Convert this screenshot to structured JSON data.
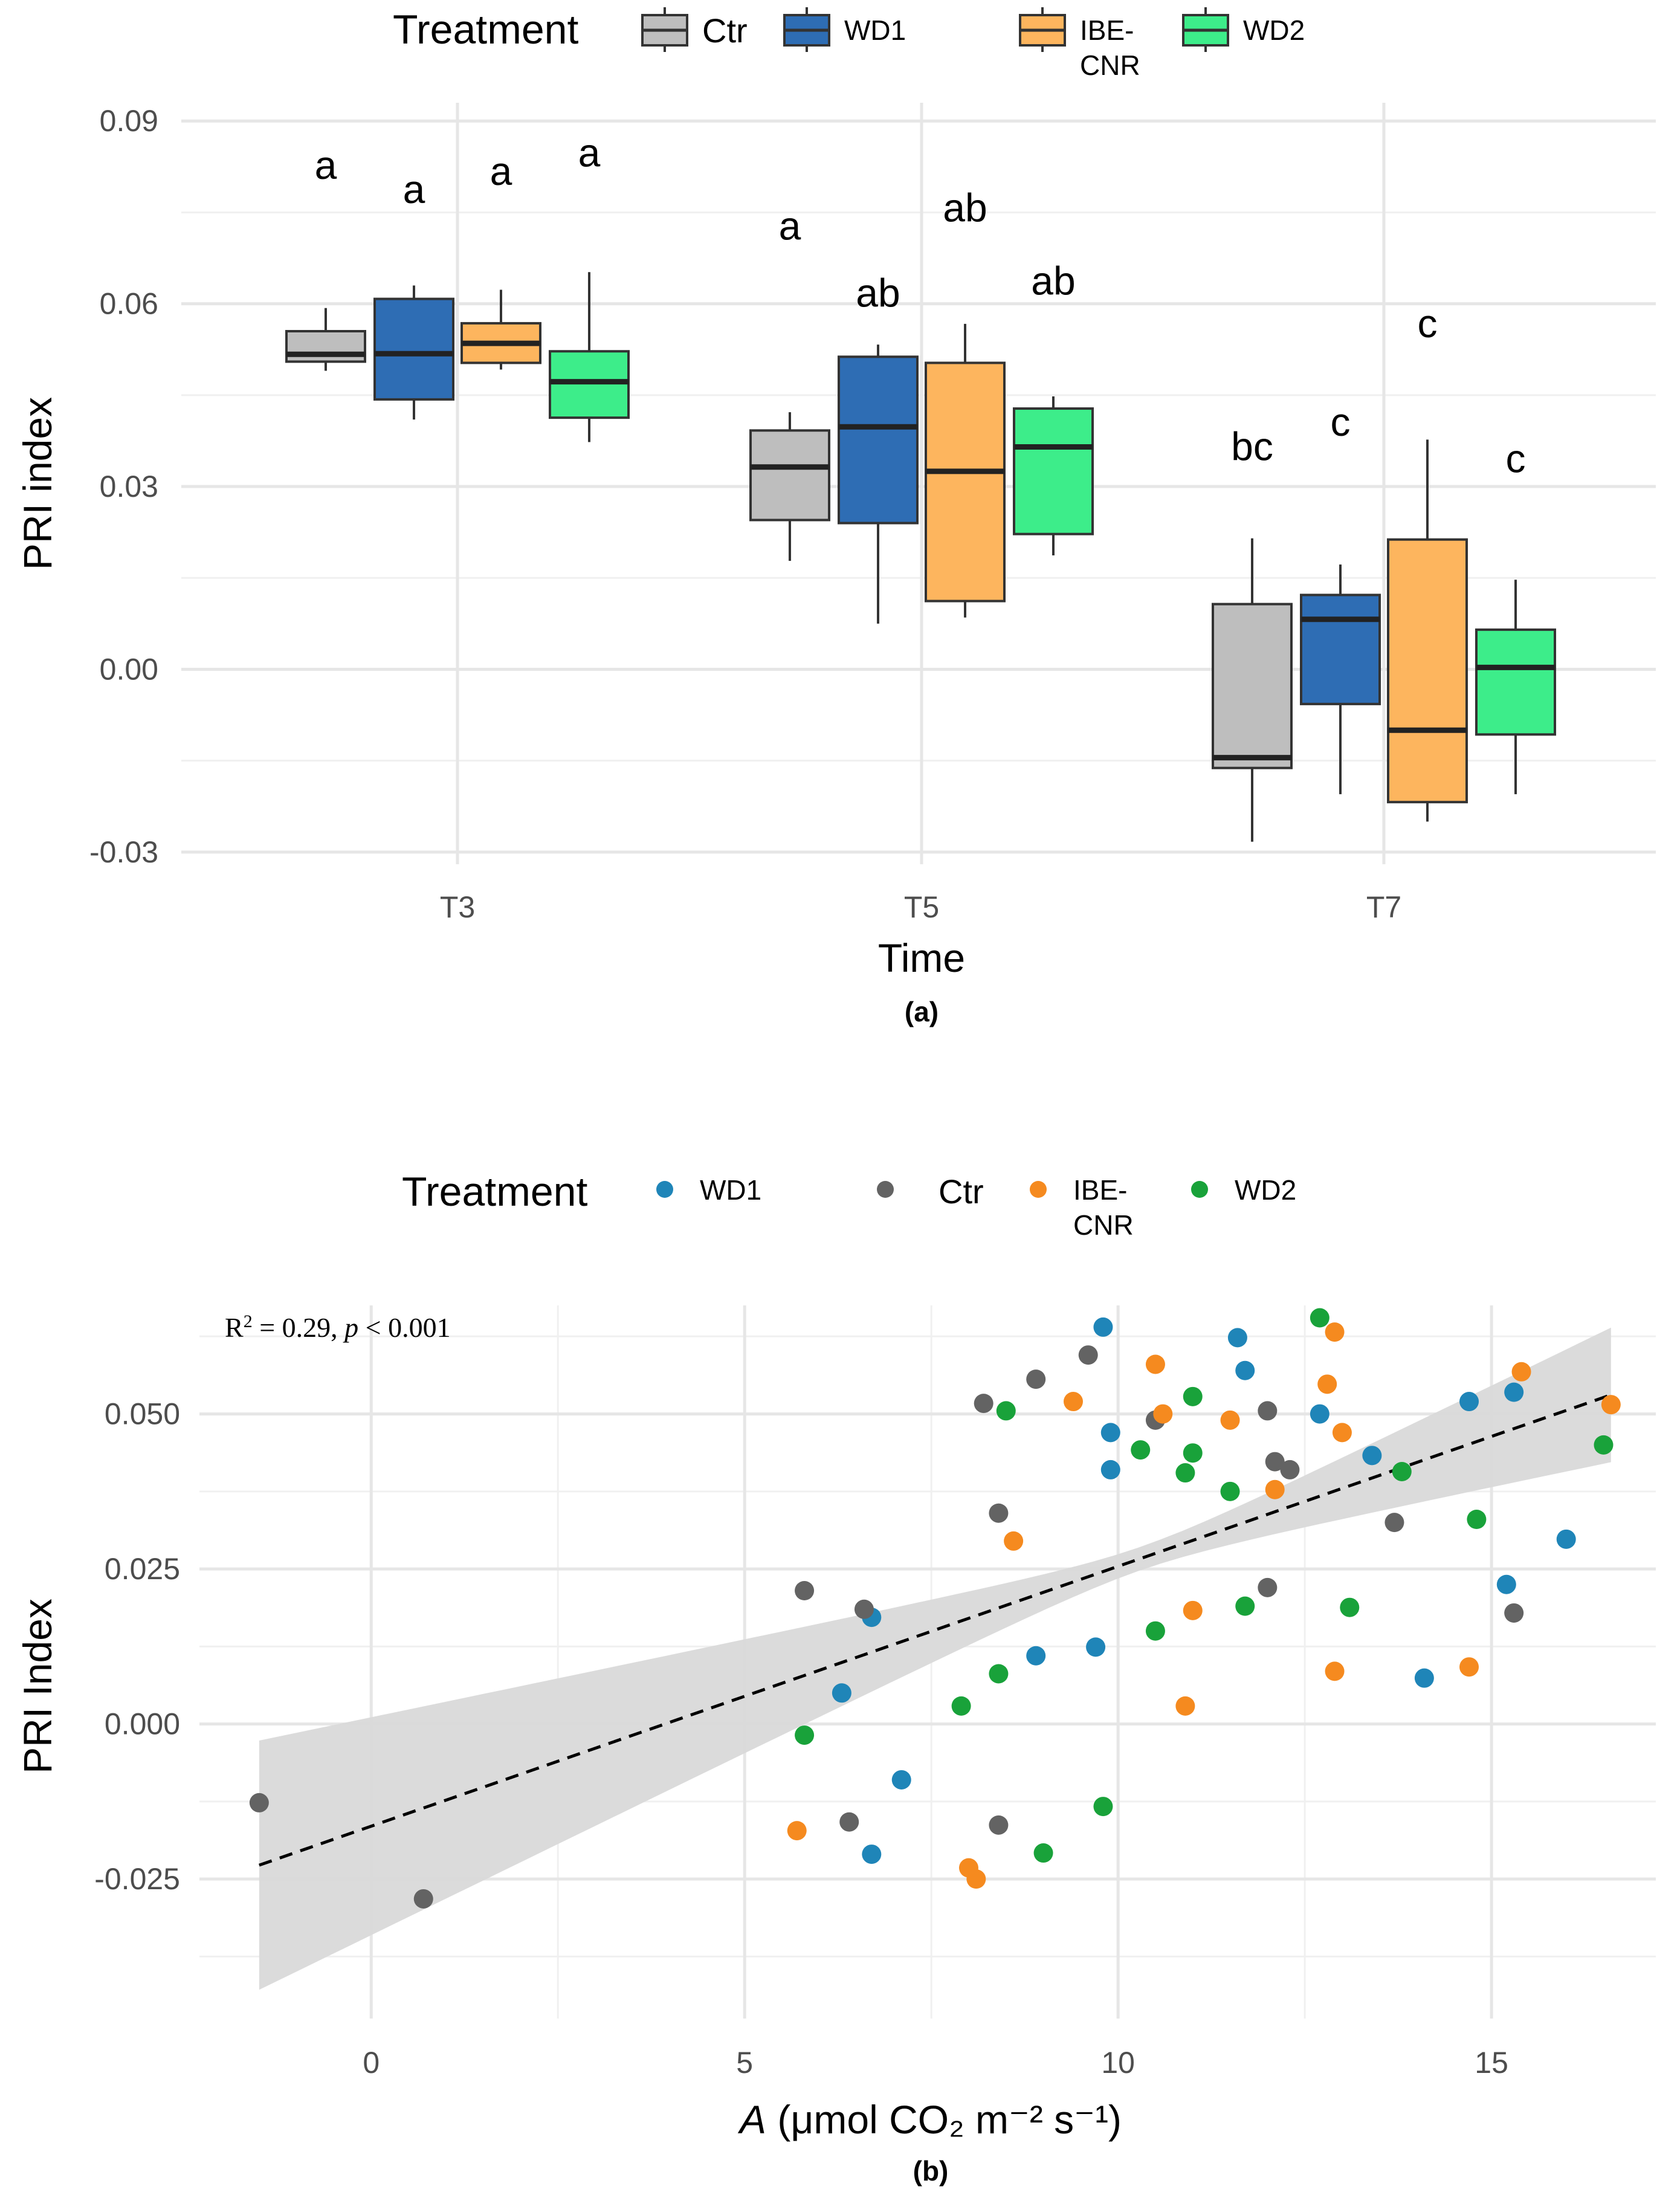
{
  "chart_data": [
    {
      "type": "box",
      "subplot_label": "(a)",
      "xlabel": "Time",
      "ylabel": "PRI index",
      "ylim": [
        -0.032,
        0.093
      ],
      "yticks": [
        -0.03,
        0.0,
        0.03,
        0.06,
        0.09
      ],
      "ytick_labels": [
        "-0.03",
        "0.00",
        "0.03",
        "0.06",
        "0.09"
      ],
      "categories": [
        "T3",
        "T5",
        "T7"
      ],
      "legend": {
        "title": "Treatment",
        "position": "top",
        "entries": [
          {
            "label": "Ctr",
            "color": "#bebebe"
          },
          {
            "label": "WD1",
            "color": "#2e6db4"
          },
          {
            "label": "IBE-\nCNR",
            "color": "#fdb55e"
          },
          {
            "label": "WD2",
            "color": "#3ded8a"
          }
        ]
      },
      "series": [
        {
          "name": "Ctr",
          "color": "#bebebe",
          "boxes": [
            {
              "category": "T3",
              "min": 0.049,
              "q1": 0.0505,
              "median": 0.0517,
              "q3": 0.0555,
              "max": 0.0593,
              "letter": "a",
              "letter_y": 0.0827
            },
            {
              "category": "T5",
              "min": 0.0178,
              "q1": 0.0245,
              "median": 0.0332,
              "q3": 0.0392,
              "max": 0.0422,
              "letter": "a",
              "letter_y": 0.0727
            },
            {
              "category": "T7",
              "min": -0.0283,
              "q1": -0.0162,
              "median": -0.0145,
              "q3": 0.0107,
              "max": 0.0215,
              "letter": "bc",
              "letter_y": 0.0365
            }
          ]
        },
        {
          "name": "WD1",
          "color": "#2e6db4",
          "boxes": [
            {
              "category": "T3",
              "min": 0.041,
              "q1": 0.0443,
              "median": 0.0518,
              "q3": 0.0608,
              "max": 0.063,
              "letter": "a",
              "letter_y": 0.0787
            },
            {
              "category": "T5",
              "min": 0.0075,
              "q1": 0.024,
              "median": 0.0398,
              "q3": 0.0513,
              "max": 0.0533,
              "letter": "ab",
              "letter_y": 0.0617
            },
            {
              "category": "T7",
              "min": -0.0205,
              "q1": -0.0057,
              "median": 0.0082,
              "q3": 0.0122,
              "max": 0.0172,
              "letter": "c",
              "letter_y": 0.0405
            }
          ]
        },
        {
          "name": "IBE-\nCNR",
          "color": "#fdb55e",
          "boxes": [
            {
              "category": "T3",
              "min": 0.0492,
              "q1": 0.0503,
              "median": 0.0535,
              "q3": 0.0568,
              "max": 0.0623,
              "letter": "a",
              "letter_y": 0.0817
            },
            {
              "category": "T5",
              "min": 0.0085,
              "q1": 0.0112,
              "median": 0.0325,
              "q3": 0.0503,
              "max": 0.0567,
              "letter": "ab",
              "letter_y": 0.0757
            },
            {
              "category": "T7",
              "min": -0.025,
              "q1": -0.0218,
              "median": -0.01,
              "q3": 0.0213,
              "max": 0.0377,
              "letter": "c",
              "letter_y": 0.0567
            }
          ]
        },
        {
          "name": "WD2",
          "color": "#3ded8a",
          "boxes": [
            {
              "category": "T3",
              "min": 0.0373,
              "q1": 0.0413,
              "median": 0.0472,
              "q3": 0.0522,
              "max": 0.0652,
              "letter": "a",
              "letter_y": 0.0847
            },
            {
              "category": "T5",
              "min": 0.0187,
              "q1": 0.0222,
              "median": 0.0365,
              "q3": 0.0428,
              "max": 0.0448,
              "letter": "ab",
              "letter_y": 0.0637
            },
            {
              "category": "T7",
              "min": -0.0205,
              "q1": -0.0107,
              "median": 0.0003,
              "q3": 0.0065,
              "max": 0.0147,
              "letter": "c",
              "letter_y": 0.0345
            }
          ]
        }
      ]
    },
    {
      "type": "scatter",
      "subplot_label": "(b)",
      "xlabel_italic": "A",
      "xlabel_rest": " (μmol CO₂ m⁻² s⁻¹)",
      "ylabel": "PRI Index",
      "xlim": [
        -2.3,
        17.2
      ],
      "ylim": [
        -0.0475,
        0.0675
      ],
      "xticks": [
        0,
        5,
        10,
        15
      ],
      "xtick_labels": [
        "0",
        "5",
        "10",
        "15"
      ],
      "yticks": [
        -0.025,
        0.0,
        0.025,
        0.05
      ],
      "ytick_labels": [
        "-0.025",
        "0.000",
        "0.025",
        "0.050"
      ],
      "annotation": {
        "lead": "R",
        "sup": "2",
        "mid": " = 0.29, ",
        "p": "p",
        "tail": " < 0.001"
      },
      "fit": {
        "slope": 0.00419,
        "intercept": -0.01648,
        "x_range": [
          -1.5,
          16.6
        ],
        "ci_lower": [
          -0.0427,
          0.0421
        ],
        "ci_upper": [
          -0.0025,
          0.0638
        ],
        "xbar": 10.3,
        "seline_color": "#000000",
        "band_color": "#d9d9d9"
      },
      "legend": {
        "title": "Treatment",
        "position": "top",
        "entries": [
          {
            "label": "WD1",
            "color": "#1f85b8"
          },
          {
            "label": "Ctr",
            "color": "#636363"
          },
          {
            "label": "IBE-\nCNR",
            "color": "#f58a1f"
          },
          {
            "label": "WD2",
            "color": "#19a23a"
          }
        ]
      },
      "series": [
        {
          "name": "WD1",
          "color": "#1f85b8",
          "points": [
            [
              9.8,
              0.064
            ],
            [
              11.6,
              0.0623
            ],
            [
              11.7,
              0.057
            ],
            [
              9.9,
              0.047
            ],
            [
              9.9,
              0.041
            ],
            [
              12.7,
              0.05
            ],
            [
              13.4,
              0.0433
            ],
            [
              14.7,
              0.052
            ],
            [
              15.3,
              0.0535
            ],
            [
              16.0,
              0.0298
            ],
            [
              15.2,
              0.0225
            ],
            [
              14.1,
              0.0074
            ],
            [
              9.7,
              0.0124
            ],
            [
              8.9,
              0.011
            ],
            [
              6.7,
              0.0172
            ],
            [
              6.3,
              0.005
            ],
            [
              7.1,
              -0.009
            ],
            [
              6.7,
              -0.021
            ]
          ]
        },
        {
          "name": "Ctr",
          "color": "#636363",
          "points": [
            [
              9.6,
              0.0595
            ],
            [
              8.9,
              0.0556
            ],
            [
              8.2,
              0.0517
            ],
            [
              10.5,
              0.049
            ],
            [
              12.0,
              0.0505
            ],
            [
              12.1,
              0.0423
            ],
            [
              12.3,
              0.041
            ],
            [
              13.7,
              0.0325
            ],
            [
              15.3,
              0.0179
            ],
            [
              8.4,
              0.034
            ],
            [
              12.0,
              0.022
            ],
            [
              5.8,
              0.0215
            ],
            [
              6.6,
              0.0185
            ],
            [
              6.4,
              -0.0158
            ],
            [
              8.4,
              -0.0163
            ],
            [
              -1.5,
              -0.0127
            ],
            [
              0.7,
              -0.0282
            ]
          ]
        },
        {
          "name": "IBE-\nCNR",
          "color": "#f58a1f",
          "points": [
            [
              12.9,
              0.0632
            ],
            [
              10.5,
              0.058
            ],
            [
              12.8,
              0.0548
            ],
            [
              9.4,
              0.052
            ],
            [
              10.6,
              0.05
            ],
            [
              11.5,
              0.049
            ],
            [
              13.0,
              0.047
            ],
            [
              12.1,
              0.0378
            ],
            [
              15.4,
              0.0568
            ],
            [
              16.6,
              0.0515
            ],
            [
              8.6,
              0.0295
            ],
            [
              11.0,
              0.0183
            ],
            [
              12.9,
              0.0085
            ],
            [
              14.7,
              0.0092
            ],
            [
              10.9,
              0.0029
            ],
            [
              5.7,
              -0.0172
            ],
            [
              8.0,
              -0.0232
            ],
            [
              8.1,
              -0.025
            ]
          ]
        },
        {
          "name": "WD2",
          "color": "#19a23a",
          "points": [
            [
              12.7,
              0.0655
            ],
            [
              11.0,
              0.0528
            ],
            [
              8.5,
              0.0505
            ],
            [
              10.3,
              0.0442
            ],
            [
              11.0,
              0.0437
            ],
            [
              10.9,
              0.0405
            ],
            [
              11.5,
              0.0375
            ],
            [
              13.8,
              0.0407
            ],
            [
              16.5,
              0.045
            ],
            [
              14.8,
              0.033
            ],
            [
              13.1,
              0.0188
            ],
            [
              11.7,
              0.019
            ],
            [
              10.5,
              0.015
            ],
            [
              8.4,
              0.0081
            ],
            [
              7.9,
              0.0029
            ],
            [
              5.8,
              -0.0018
            ],
            [
              9.8,
              -0.0133
            ],
            [
              9.0,
              -0.0208
            ]
          ]
        }
      ]
    }
  ]
}
